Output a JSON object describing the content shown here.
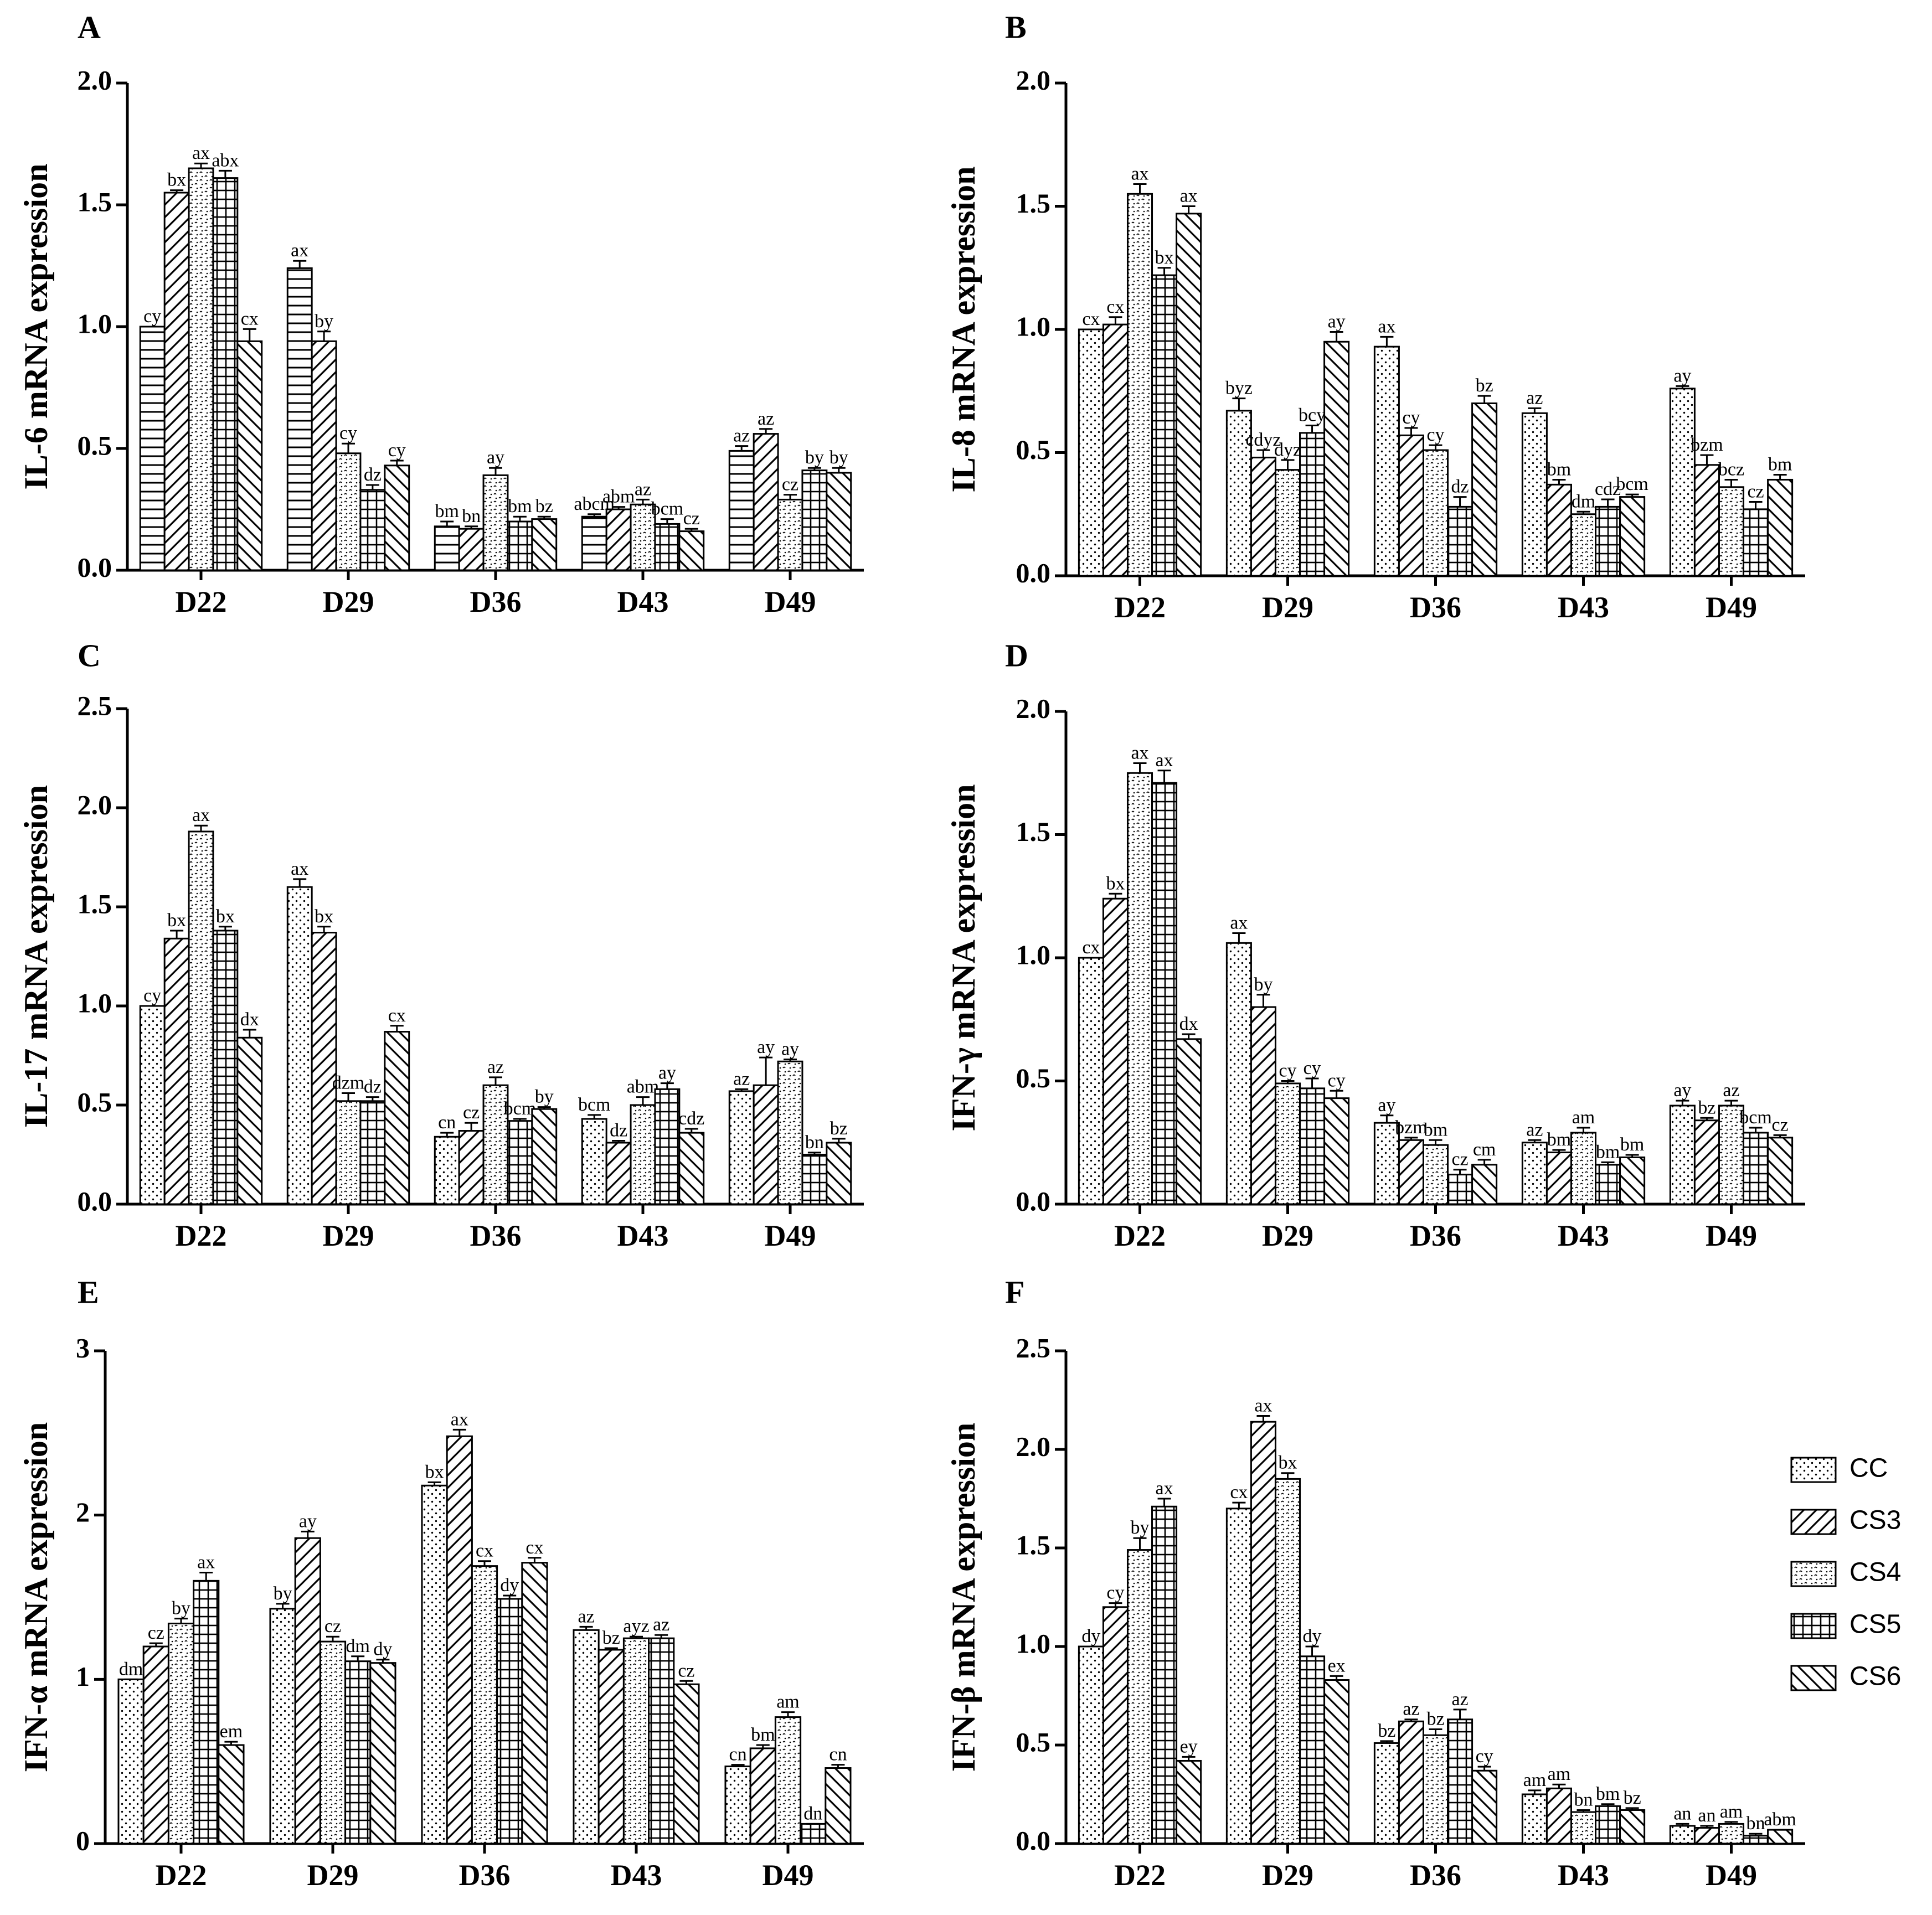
{
  "chart_data": [
    {
      "type": "bar",
      "panel_label": "A",
      "categories": [
        "D22",
        "D29",
        "D36",
        "D43",
        "D49"
      ],
      "ylabel": "IL-6 mRNA expression",
      "ylim": [
        0,
        2.0
      ],
      "yticks": [
        "0.0",
        "0.5",
        "1.0",
        "1.5",
        "2.0"
      ],
      "series": [
        {
          "name": "CC",
          "values": [
            1.0,
            1.24,
            0.18,
            0.22,
            0.49
          ],
          "errors": [
            0.0,
            0.03,
            0.02,
            0.01,
            0.02
          ],
          "letters": [
            "cy",
            "ax",
            "bm",
            "abcm",
            "az"
          ]
        },
        {
          "name": "CS3",
          "values": [
            1.55,
            0.94,
            0.17,
            0.25,
            0.56
          ],
          "errors": [
            0.01,
            0.04,
            0.01,
            0.01,
            0.02
          ],
          "letters": [
            "bx",
            "by",
            "bn",
            "abm",
            "az"
          ]
        },
        {
          "name": "CS4",
          "values": [
            1.65,
            0.48,
            0.39,
            0.27,
            0.29
          ],
          "errors": [
            0.02,
            0.04,
            0.03,
            0.02,
            0.02
          ],
          "letters": [
            "ax",
            "cy",
            "ay",
            "az",
            "cz"
          ]
        },
        {
          "name": "CS5",
          "values": [
            1.61,
            0.33,
            0.2,
            0.19,
            0.41
          ],
          "errors": [
            0.03,
            0.02,
            0.02,
            0.02,
            0.01
          ],
          "letters": [
            "abx",
            "dz",
            "bm",
            "bcm",
            "by"
          ]
        },
        {
          "name": "CS6",
          "values": [
            0.94,
            0.43,
            0.21,
            0.16,
            0.4
          ],
          "errors": [
            0.05,
            0.02,
            0.01,
            0.01,
            0.02
          ],
          "letters": [
            "cx",
            "cy",
            "bz",
            "cz",
            "by"
          ]
        }
      ]
    },
    {
      "type": "bar",
      "panel_label": "B",
      "categories": [
        "D22",
        "D29",
        "D36",
        "D43",
        "D49"
      ],
      "ylabel": "IL-8 mRNA expression",
      "ylim": [
        0,
        2.0
      ],
      "yticks": [
        "0.0",
        "0.5",
        "1.0",
        "1.5",
        "2.0"
      ],
      "series": [
        {
          "name": "CC",
          "values": [
            1.0,
            0.67,
            0.93,
            0.66,
            0.76
          ],
          "errors": [
            0.0,
            0.05,
            0.04,
            0.02,
            0.01
          ],
          "letters": [
            "cx",
            "byz",
            "ax",
            "az",
            "ay"
          ]
        },
        {
          "name": "CS3",
          "values": [
            1.02,
            0.48,
            0.57,
            0.37,
            0.45
          ],
          "errors": [
            0.03,
            0.03,
            0.03,
            0.02,
            0.04
          ],
          "letters": [
            "cx",
            "cdyz",
            "cy",
            "bm",
            "bzm"
          ]
        },
        {
          "name": "CS4",
          "values": [
            1.55,
            0.43,
            0.51,
            0.25,
            0.36
          ],
          "errors": [
            0.04,
            0.04,
            0.02,
            0.01,
            0.03
          ],
          "letters": [
            "ax",
            "dyz",
            "cy",
            "dm",
            "bcz"
          ]
        },
        {
          "name": "CS5",
          "values": [
            1.22,
            0.58,
            0.28,
            0.28,
            0.27
          ],
          "errors": [
            0.03,
            0.03,
            0.04,
            0.03,
            0.03
          ],
          "letters": [
            "bx",
            "bcy",
            "dz",
            "cdz",
            "cz"
          ]
        },
        {
          "name": "CS6",
          "values": [
            1.47,
            0.95,
            0.7,
            0.32,
            0.39
          ],
          "errors": [
            0.03,
            0.04,
            0.03,
            0.01,
            0.02
          ],
          "letters": [
            "ax",
            "ay",
            "bz",
            "bcm",
            "bm"
          ]
        }
      ]
    },
    {
      "type": "bar",
      "panel_label": "C",
      "categories": [
        "D22",
        "D29",
        "D36",
        "D43",
        "D49"
      ],
      "ylabel": "IL-17 mRNA expression",
      "ylim": [
        0,
        2.5
      ],
      "yticks": [
        "0.0",
        "0.5",
        "1.0",
        "1.5",
        "2.0",
        "2.5"
      ],
      "series": [
        {
          "name": "CC",
          "values": [
            1.0,
            1.6,
            0.34,
            0.43,
            0.57
          ],
          "errors": [
            0.0,
            0.04,
            0.02,
            0.02,
            0.01
          ],
          "letters": [
            "cy",
            "ax",
            "cn",
            "bcm",
            "az"
          ]
        },
        {
          "name": "CS3",
          "values": [
            1.34,
            1.37,
            0.37,
            0.31,
            0.6
          ],
          "errors": [
            0.04,
            0.03,
            0.04,
            0.01,
            0.14
          ],
          "letters": [
            "bx",
            "bx",
            "cz",
            "dz",
            "ay"
          ]
        },
        {
          "name": "CS4",
          "values": [
            1.88,
            0.52,
            0.6,
            0.5,
            0.72
          ],
          "errors": [
            0.03,
            0.04,
            0.04,
            0.04,
            0.01
          ],
          "letters": [
            "ax",
            "dzm",
            "az",
            "abm",
            "ay"
          ]
        },
        {
          "name": "CS5",
          "values": [
            1.38,
            0.52,
            0.42,
            0.58,
            0.25
          ],
          "errors": [
            0.02,
            0.02,
            0.01,
            0.03,
            0.01
          ],
          "letters": [
            "bx",
            "dz",
            "bcm",
            "ay",
            "bn"
          ]
        },
        {
          "name": "CS6",
          "values": [
            0.84,
            0.87,
            0.48,
            0.36,
            0.31
          ],
          "errors": [
            0.04,
            0.03,
            0.01,
            0.02,
            0.02
          ],
          "letters": [
            "dx",
            "cx",
            "by",
            "cdz",
            "bz"
          ]
        }
      ]
    },
    {
      "type": "bar",
      "panel_label": "D",
      "categories": [
        "D22",
        "D29",
        "D36",
        "D43",
        "D49"
      ],
      "ylabel": "IFN-γ mRNA expression",
      "ylim": [
        0,
        2.0
      ],
      "yticks": [
        "0.0",
        "0.5",
        "1.0",
        "1.5",
        "2.0"
      ],
      "series": [
        {
          "name": "CC",
          "values": [
            1.0,
            1.06,
            0.33,
            0.25,
            0.4
          ],
          "errors": [
            0.0,
            0.04,
            0.03,
            0.01,
            0.02
          ],
          "letters": [
            "cx",
            "ax",
            "ay",
            "az",
            "ay"
          ]
        },
        {
          "name": "CS3",
          "values": [
            1.24,
            0.8,
            0.26,
            0.21,
            0.34
          ],
          "errors": [
            0.02,
            0.05,
            0.01,
            0.01,
            0.01
          ],
          "letters": [
            "bx",
            "by",
            "bzm",
            "bm",
            "bz"
          ]
        },
        {
          "name": "CS4",
          "values": [
            1.75,
            0.49,
            0.24,
            0.29,
            0.4
          ],
          "errors": [
            0.04,
            0.01,
            0.02,
            0.02,
            0.02
          ],
          "letters": [
            "ax",
            "cy",
            "bm",
            "am",
            "az"
          ]
        },
        {
          "name": "CS5",
          "values": [
            1.71,
            0.47,
            0.12,
            0.16,
            0.29
          ],
          "errors": [
            0.05,
            0.04,
            0.02,
            0.01,
            0.02
          ],
          "letters": [
            "ax",
            "cy",
            "cz",
            "bm",
            "bcm"
          ]
        },
        {
          "name": "CS6",
          "values": [
            0.67,
            0.43,
            0.16,
            0.19,
            0.27
          ],
          "errors": [
            0.02,
            0.03,
            0.02,
            0.01,
            0.01
          ],
          "letters": [
            "dx",
            "cy",
            "cm",
            "bm",
            "cz"
          ]
        }
      ]
    },
    {
      "type": "bar",
      "panel_label": "E",
      "categories": [
        "D22",
        "D29",
        "D36",
        "D43",
        "D49"
      ],
      "ylabel": "IFN-α mRNA expression",
      "ylim": [
        0,
        3
      ],
      "yticks": [
        "0",
        "1",
        "2",
        "3"
      ],
      "series": [
        {
          "name": "CC",
          "values": [
            1.0,
            1.43,
            2.18,
            1.3,
            0.47
          ],
          "errors": [
            0.0,
            0.03,
            0.02,
            0.02,
            0.01
          ],
          "letters": [
            "dm",
            "by",
            "bx",
            "az",
            "cn"
          ]
        },
        {
          "name": "CS3",
          "values": [
            1.2,
            1.86,
            2.48,
            1.18,
            0.58
          ],
          "errors": [
            0.02,
            0.04,
            0.04,
            0.01,
            0.02
          ],
          "letters": [
            "cz",
            "ay",
            "ax",
            "bz",
            "bm"
          ]
        },
        {
          "name": "CS4",
          "values": [
            1.34,
            1.23,
            1.69,
            1.25,
            0.77
          ],
          "errors": [
            0.03,
            0.03,
            0.03,
            0.01,
            0.03
          ],
          "letters": [
            "by",
            "cz",
            "cx",
            "ayz",
            "am"
          ]
        },
        {
          "name": "CS5",
          "values": [
            1.6,
            1.11,
            1.49,
            1.25,
            0.12
          ],
          "errors": [
            0.05,
            0.03,
            0.02,
            0.02,
            0.0
          ],
          "letters": [
            "ax",
            "dm",
            "dy",
            "az",
            "dn"
          ]
        },
        {
          "name": "CS6",
          "values": [
            0.6,
            1.1,
            1.71,
            0.97,
            0.46
          ],
          "errors": [
            0.02,
            0.02,
            0.03,
            0.02,
            0.02
          ],
          "letters": [
            "em",
            "dy",
            "cx",
            "cz",
            "cn"
          ]
        }
      ]
    },
    {
      "type": "bar",
      "panel_label": "F",
      "categories": [
        "D22",
        "D29",
        "D36",
        "D43",
        "D49"
      ],
      "ylabel": "IFN-β mRNA expression",
      "ylim": [
        0,
        2.5
      ],
      "yticks": [
        "0.0",
        "0.5",
        "1.0",
        "1.5",
        "2.0",
        "2.5"
      ],
      "series": [
        {
          "name": "CC",
          "values": [
            1.0,
            1.7,
            0.51,
            0.25,
            0.09
          ],
          "errors": [
            0.0,
            0.03,
            0.01,
            0.02,
            0.01
          ],
          "letters": [
            "dy",
            "cx",
            "bz",
            "am",
            "an"
          ]
        },
        {
          "name": "CS3",
          "values": [
            1.2,
            2.14,
            0.62,
            0.28,
            0.08
          ],
          "errors": [
            0.02,
            0.03,
            0.01,
            0.02,
            0.01
          ],
          "letters": [
            "cy",
            "ax",
            "az",
            "am",
            "an"
          ]
        },
        {
          "name": "CS4",
          "values": [
            1.49,
            1.85,
            0.55,
            0.16,
            0.1
          ],
          "errors": [
            0.06,
            0.03,
            0.03,
            0.01,
            0.01
          ],
          "letters": [
            "by",
            "bx",
            "bz",
            "bn",
            "am"
          ]
        },
        {
          "name": "CS5",
          "values": [
            1.71,
            0.95,
            0.63,
            0.19,
            0.04
          ],
          "errors": [
            0.04,
            0.05,
            0.05,
            0.01,
            0.01
          ],
          "letters": [
            "ax",
            "dy",
            "az",
            "bm",
            "bn"
          ]
        },
        {
          "name": "CS6",
          "values": [
            0.42,
            0.83,
            0.37,
            0.17,
            0.07
          ],
          "errors": [
            0.02,
            0.02,
            0.02,
            0.01,
            0.0
          ],
          "letters": [
            "ey",
            "ex",
            "cy",
            "bz",
            "abm"
          ]
        }
      ]
    }
  ],
  "legend": {
    "placement": "right of panel F",
    "items": [
      {
        "label": "CC",
        "pattern": "dots"
      },
      {
        "label": "CS3",
        "pattern": "backslash-hatch"
      },
      {
        "label": "CS4",
        "pattern": "wavy-dots"
      },
      {
        "label": "CS5",
        "pattern": "grid"
      },
      {
        "label": "CS6",
        "pattern": "slash-hatch"
      }
    ]
  },
  "styles": {
    "bar_fill": "#ffffff",
    "bar_stroke": "#000000",
    "panel_a_cc_pattern": "horizontal-lines"
  }
}
